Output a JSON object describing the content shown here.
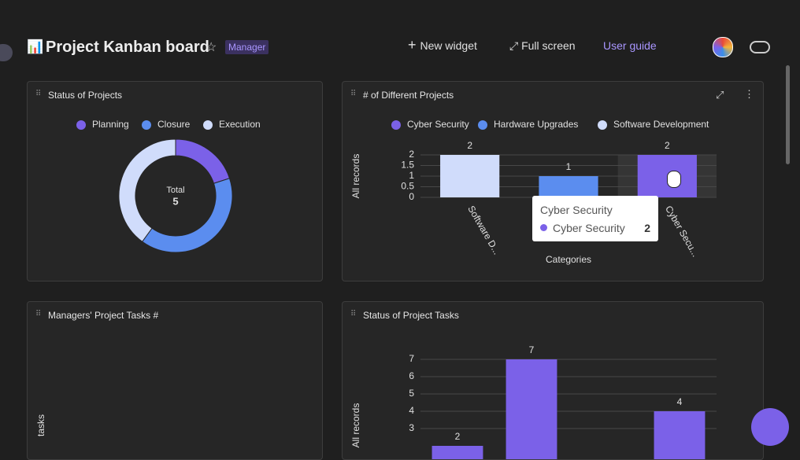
{
  "header": {
    "icon": "📊",
    "title": "Project Kanban board",
    "badge": "Manager",
    "actions": [
      "New widget",
      "Full screen",
      "User guide"
    ]
  },
  "chart_data": [
    {
      "type": "pie",
      "title": "Status of Projects",
      "categories": [
        "Planning",
        "Closure",
        "Execution"
      ],
      "values": [
        1,
        2,
        2
      ],
      "colors": [
        "#7b61e8",
        "#5b8def",
        "#d0dcfb"
      ],
      "total_label": "Total",
      "total": 5
    },
    {
      "type": "bar",
      "title": "# of Different Projects",
      "categories": [
        "Software D...",
        null,
        "Cyber Secu..."
      ],
      "series": [
        {
          "name": "Cyber Security",
          "color": "#7b61e8",
          "values": [
            null,
            null,
            2
          ]
        },
        {
          "name": "Hardware Upgrades",
          "color": "#5b8def",
          "values": [
            null,
            1,
            null
          ]
        },
        {
          "name": "Software Development",
          "color": "#d0dcfb",
          "values": [
            2,
            null,
            null
          ]
        }
      ],
      "ylim": [
        0,
        2
      ],
      "yticks": [
        0,
        0.5,
        1,
        1.5,
        2
      ],
      "x_label": "Categories",
      "y_label": "All records",
      "grid": true,
      "tooltip": {
        "title": "Cyber Security",
        "series": "Cyber Security",
        "value": 2
      }
    },
    {
      "type": "bar",
      "title": "Managers' Project Tasks #",
      "y_label": "tasks"
    },
    {
      "type": "bar",
      "title": "Status of Project Tasks",
      "values": [
        2,
        7,
        null,
        4
      ],
      "color": "#7b61e8",
      "ylim": [
        0,
        7
      ],
      "yticks": [
        3,
        4,
        5,
        6,
        7
      ],
      "y_label": "All records",
      "grid": true
    }
  ]
}
